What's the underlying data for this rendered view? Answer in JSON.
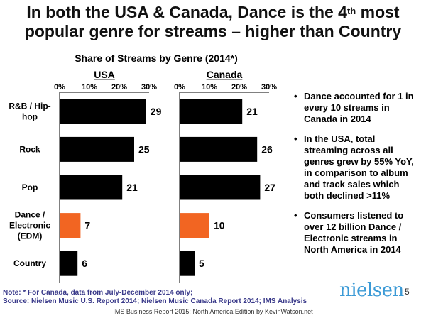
{
  "title": {
    "line1_pre": "In both the USA & Canada, Dance is the 4",
    "line1_sup": "th",
    "line1_post": " most",
    "line2": "popular genre for streams – higher than Country"
  },
  "chart_data": {
    "type": "bar",
    "orientation": "horizontal",
    "title": "Share of Streams by Genre (2014*)",
    "categories": [
      "R&B / Hip-hop",
      "Rock",
      "Pop",
      "Dance / Electronic (EDM)",
      "Country"
    ],
    "category_label_lines": [
      [
        "R&B / Hip-",
        "hop"
      ],
      [
        "Rock"
      ],
      [
        "Pop"
      ],
      [
        "Dance /",
        "Electronic",
        "(EDM)"
      ],
      [
        "Country"
      ]
    ],
    "xlim": [
      0,
      30
    ],
    "ticks": [
      "0%",
      "10%",
      "20%",
      "30%"
    ],
    "series": [
      {
        "name": "USA",
        "values": [
          29,
          25,
          21,
          7,
          6
        ]
      },
      {
        "name": "Canada",
        "values": [
          21,
          26,
          27,
          10,
          5
        ]
      }
    ],
    "colors": {
      "default": "#000000",
      "highlight": "#f26522"
    },
    "highlight_category": "Dance / Electronic (EDM)"
  },
  "bullets": [
    "Dance accounted for 1 in every 10 streams in Canada in 2014",
    "In the USA, total streaming across all genres grew by 55% YoY, in comparison to album and track sales which both declined >11%",
    "Consumers listened to over 12 billion Dance / Electronic streams in North America in 2014"
  ],
  "note": {
    "line1": "Note: * For Canada, data from July-December 2014 only;",
    "line2": "Source: Nielsen Music U.S. Report 2014; Nielsen Music Canada Report 2014; IMS Analysis"
  },
  "footer": "IMS Business Report 2015: North America Edition by KevinWatson.net",
  "logo": "nielsen",
  "page_number": "5"
}
